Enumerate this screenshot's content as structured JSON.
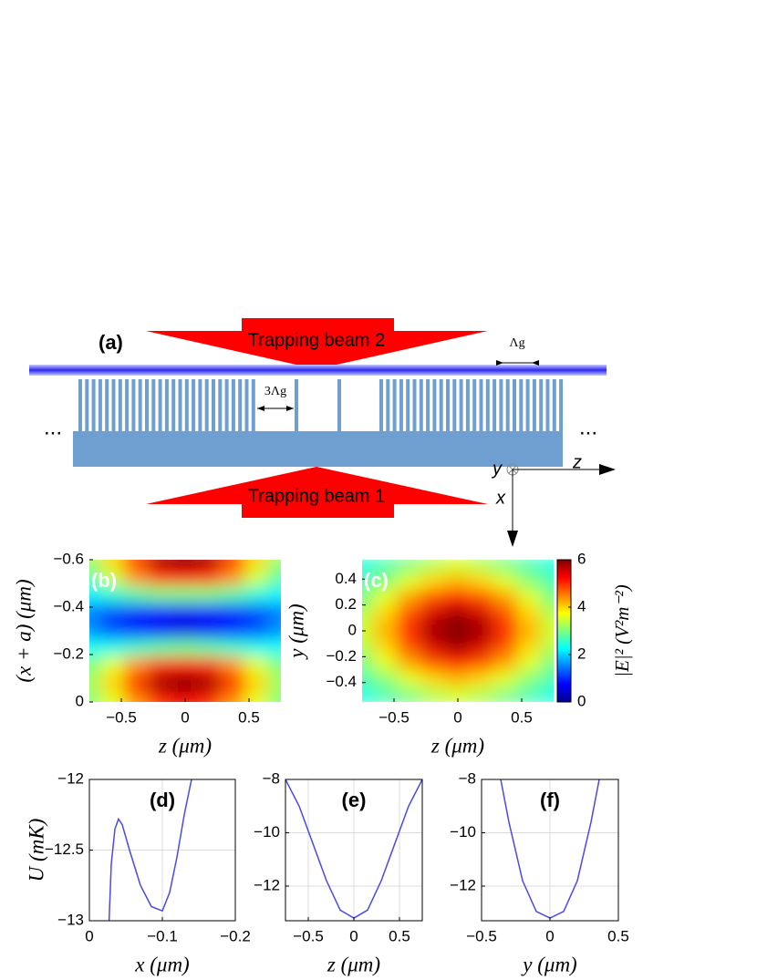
{
  "diagram": {
    "panel_label": "(a)",
    "beam_top": "Trapping beam 2",
    "beam_bottom": "Trapping beam 1",
    "pitch": "Λg",
    "gap": "3Λg",
    "ellipsis_left": "...",
    "ellipsis_right": "...",
    "axis_y": "y",
    "axis_z": "z",
    "axis_x": "x"
  },
  "chart_data": [
    {
      "type": "heatmap",
      "label": "(b)",
      "xlabel": "z (μm)",
      "ylabel": "(x + a) (μm)",
      "colormap": "jet",
      "xlim": [
        -0.75,
        0.75
      ],
      "ylim": [
        0,
        -0.6
      ],
      "zlim": [
        0,
        6
      ],
      "xticks": [
        {
          "value": -0.5,
          "label": "−0.5"
        },
        0,
        0.5
      ],
      "yticks": [
        0,
        {
          "value": -0.2,
          "label": "−0.2"
        },
        {
          "value": -0.4,
          "label": "−0.4"
        },
        {
          "value": -0.6,
          "label": "−0.6"
        }
      ],
      "x": [
        -0.75,
        -0.5625,
        -0.375,
        -0.1875,
        0,
        0.1875,
        0.375,
        0.5625,
        0.75
      ],
      "y": [
        -0.6,
        -0.525,
        -0.45,
        -0.375,
        -0.3,
        -0.225,
        -0.15,
        -0.075,
        0
      ],
      "z": [
        [
          3.2,
          4.0,
          5.0,
          5.8,
          6.0,
          5.8,
          5.0,
          4.0,
          3.2
        ],
        [
          2.8,
          3.5,
          4.4,
          5.0,
          5.2,
          5.0,
          4.4,
          3.5,
          2.8
        ],
        [
          2.2,
          2.5,
          2.8,
          3.0,
          3.0,
          3.0,
          2.8,
          2.5,
          2.2
        ],
        [
          1.5,
          1.2,
          1.0,
          0.8,
          0.7,
          0.8,
          1.0,
          1.2,
          1.5
        ],
        [
          1.6,
          1.2,
          0.9,
          0.7,
          0.6,
          0.7,
          0.9,
          1.2,
          1.6
        ],
        [
          2.3,
          2.4,
          2.6,
          2.8,
          2.9,
          2.8,
          2.6,
          2.4,
          2.3
        ],
        [
          3.0,
          3.6,
          4.4,
          5.0,
          5.2,
          5.0,
          4.4,
          3.6,
          3.0
        ],
        [
          3.2,
          4.0,
          5.0,
          5.8,
          6.0,
          5.8,
          5.0,
          4.0,
          3.2
        ],
        [
          3.0,
          3.6,
          4.4,
          5.0,
          5.3,
          5.0,
          4.4,
          3.6,
          3.0
        ]
      ]
    },
    {
      "type": "heatmap",
      "label": "(c)",
      "xlabel": "z (μm)",
      "ylabel": "y (μm)",
      "colormap": "jet",
      "xlim": [
        -0.75,
        0.75
      ],
      "ylim": [
        -0.55,
        0.55
      ],
      "zlim": [
        0,
        6
      ],
      "xticks": [
        {
          "value": -0.5,
          "label": "−0.5"
        },
        0,
        0.5
      ],
      "yticks": [
        {
          "value": -0.4,
          "label": "−0.4"
        },
        {
          "value": -0.2,
          "label": "−0.2"
        },
        0,
        0.2,
        0.4
      ],
      "x": [
        -0.75,
        -0.5625,
        -0.375,
        -0.1875,
        0,
        0.1875,
        0.375,
        0.5625,
        0.75
      ],
      "y": [
        0.5,
        0.375,
        0.25,
        0.125,
        0,
        -0.125,
        -0.25,
        -0.375,
        -0.5
      ],
      "z": [
        [
          2.4,
          2.7,
          3.0,
          3.3,
          3.5,
          3.3,
          3.0,
          2.7,
          2.4
        ],
        [
          2.7,
          3.1,
          3.6,
          4.0,
          4.2,
          4.0,
          3.6,
          3.1,
          2.7
        ],
        [
          3.0,
          3.6,
          4.3,
          4.8,
          5.1,
          4.8,
          4.3,
          3.6,
          3.0
        ],
        [
          3.3,
          4.0,
          4.8,
          5.5,
          5.8,
          5.5,
          4.8,
          4.0,
          3.3
        ],
        [
          3.5,
          4.2,
          5.0,
          5.8,
          6.0,
          5.8,
          5.0,
          4.2,
          3.5
        ],
        [
          3.3,
          4.0,
          4.8,
          5.5,
          5.8,
          5.5,
          4.8,
          4.0,
          3.3
        ],
        [
          3.0,
          3.6,
          4.3,
          4.8,
          5.1,
          4.8,
          4.3,
          3.6,
          3.0
        ],
        [
          2.7,
          3.1,
          3.6,
          4.0,
          4.2,
          4.0,
          3.6,
          3.1,
          2.7
        ],
        [
          2.4,
          2.7,
          3.0,
          3.3,
          3.5,
          3.3,
          3.0,
          2.7,
          2.4
        ]
      ],
      "colorbar": {
        "label": "|E|² (V²m⁻²)",
        "ticks": [
          0,
          2,
          4,
          6
        ]
      }
    },
    {
      "type": "line",
      "label": "(d)",
      "xlabel": "x (μm)",
      "ylabel": "U (mK)",
      "grid": true,
      "color": "#4a4ae8",
      "xlim": [
        0,
        -0.2
      ],
      "ylim": [
        -13,
        -12
      ],
      "xticks": [
        0,
        {
          "value": -0.1,
          "label": "−0.1"
        },
        {
          "value": -0.2,
          "label": "−0.2"
        }
      ],
      "yticks": [
        {
          "value": -13,
          "label": "−13"
        },
        {
          "value": -12.5,
          "label": "−12.5"
        },
        {
          "value": -12,
          "label": "−12"
        }
      ],
      "x": [
        -0.027,
        -0.03,
        -0.035,
        -0.04,
        -0.045,
        -0.055,
        -0.07,
        -0.085,
        -0.1,
        -0.11,
        -0.12,
        -0.13,
        -0.14
      ],
      "values": [
        -13,
        -12.6,
        -12.35,
        -12.28,
        -12.32,
        -12.5,
        -12.75,
        -12.9,
        -12.93,
        -12.8,
        -12.55,
        -12.25,
        -12.0
      ]
    },
    {
      "type": "line",
      "label": "(e)",
      "xlabel": "z (μm)",
      "grid": true,
      "color": "#4a4ae8",
      "xlim": [
        -0.75,
        0.75
      ],
      "ylim": [
        -13.3,
        -8
      ],
      "xticks": [
        {
          "value": -0.5,
          "label": "−0.5"
        },
        0,
        0.5
      ],
      "yticks": [
        {
          "value": -12,
          "label": "−12"
        },
        {
          "value": -10,
          "label": "−10"
        },
        {
          "value": -8,
          "label": "−8"
        }
      ],
      "x": [
        -0.75,
        -0.6,
        -0.45,
        -0.3,
        -0.15,
        0,
        0.15,
        0.3,
        0.45,
        0.6,
        0.75
      ],
      "values": [
        -8.0,
        -9.0,
        -10.4,
        -11.8,
        -12.9,
        -13.2,
        -12.9,
        -11.8,
        -10.4,
        -9.0,
        -8.0
      ]
    },
    {
      "type": "line",
      "label": "(f)",
      "xlabel": "y (μm)",
      "grid": true,
      "color": "#4a4ae8",
      "xlim": [
        -0.5,
        0.5
      ],
      "ylim": [
        -13.3,
        -8
      ],
      "xticks": [
        {
          "value": -0.5,
          "label": "−0.5"
        },
        0,
        0.5
      ],
      "yticks": [
        {
          "value": -12,
          "label": "−12"
        },
        {
          "value": -10,
          "label": "−10"
        },
        {
          "value": -8,
          "label": "−8"
        }
      ],
      "x": [
        -0.36,
        -0.3,
        -0.2,
        -0.1,
        0,
        0.1,
        0.2,
        0.3,
        0.36
      ],
      "values": [
        -8,
        -9.6,
        -11.8,
        -12.95,
        -13.2,
        -12.95,
        -11.8,
        -9.6,
        -8
      ]
    }
  ]
}
